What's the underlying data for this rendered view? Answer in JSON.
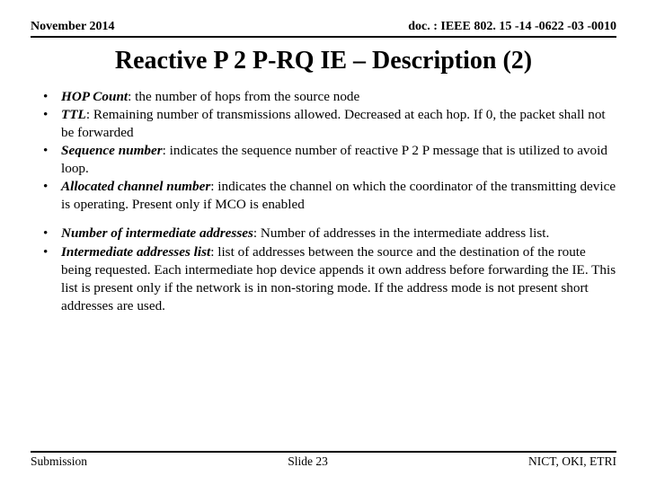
{
  "header": {
    "date": "November 2014",
    "docid": "doc. : IEEE 802. 15 -14 -0622 -03 -0010"
  },
  "title": "Reactive P 2 P-RQ IE – Description (2)",
  "bullets_group1": [
    {
      "term": "HOP Count",
      "desc": ": the number of hops from the source node"
    },
    {
      "term": "TTL",
      "desc": ": Remaining number of transmissions allowed. Decreased at each hop. If 0, the packet shall not be forwarded"
    },
    {
      "term": "Sequence number",
      "desc": ": indicates the sequence number of reactive P 2 P message that is utilized to avoid loop."
    },
    {
      "term": "Allocated channel number",
      "desc": ": indicates the channel on which the coordinator of the transmitting device is operating. Present only if MCO is enabled"
    }
  ],
  "bullets_group2": [
    {
      "term": "Number of intermediate addresses",
      "desc": ": Number of addresses in the intermediate address list."
    },
    {
      "term": "Intermediate addresses list",
      "desc": ": list of addresses between the source and the destination of the route being requested. Each intermediate hop device appends it own address before forwarding the IE. This list is present only if the network is in non-storing mode. If the address mode is not present short addresses are used."
    }
  ],
  "footer": {
    "left": "Submission",
    "center": "Slide 23",
    "right": "NICT, OKI, ETRI"
  }
}
